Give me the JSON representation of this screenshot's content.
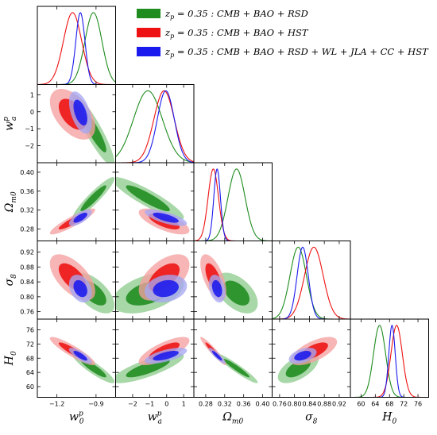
{
  "chart_data": {
    "type": "triangle-corner",
    "parameters": [
      {
        "key": "w0",
        "label": "w",
        "sub": "0",
        "sup": "p",
        "range": [
          -1.35,
          -0.75
        ],
        "ticks": [
          -1.2,
          -0.9
        ],
        "tick_labels": [
          "−1.2",
          "−0.9"
        ]
      },
      {
        "key": "wa",
        "label": "w",
        "sub": "a",
        "sup": "p",
        "range": [
          -3.0,
          1.6
        ],
        "ticks": [
          -2,
          -1,
          0,
          1
        ],
        "tick_labels": [
          "−2",
          "−1",
          "0",
          "1"
        ]
      },
      {
        "key": "om",
        "label": "Ω",
        "sub": "m0",
        "sup": "",
        "range": [
          0.255,
          0.42
        ],
        "ticks": [
          0.28,
          0.32,
          0.36,
          0.4
        ],
        "tick_labels": [
          "0.28",
          "0.32",
          "0.36",
          "0.40"
        ]
      },
      {
        "key": "s8",
        "label": "σ",
        "sub": "8",
        "sup": "",
        "range": [
          0.74,
          0.95
        ],
        "ticks": [
          0.76,
          0.8,
          0.84,
          0.88,
          0.92
        ],
        "tick_labels": [
          "0.76",
          "0.80",
          "0.84",
          "0.88",
          "0.92"
        ]
      },
      {
        "key": "h0",
        "label": "H",
        "sub": "0",
        "sup": "",
        "range": [
          57,
          79
        ],
        "ticks": [
          60,
          64,
          68,
          72,
          76
        ],
        "tick_labels": [
          "60",
          "64",
          "68",
          "72",
          "76"
        ]
      }
    ],
    "legend": {
      "placement": "top-right",
      "entries": [
        {
          "series": "green",
          "prefix": "z",
          "prefix_sub": "p",
          "text": " = 0.35 :  CMB + BAO + RSD"
        },
        {
          "series": "red",
          "prefix": "z",
          "prefix_sub": "p",
          "text": " = 0.35 :  CMB + BAO + HST"
        },
        {
          "series": "blue",
          "prefix": "z",
          "prefix_sub": "p",
          "text": " = 0.35 :  CMB + BAO + RSD + WL + JLA + CC + HST"
        }
      ]
    },
    "series": [
      {
        "id": "green",
        "color": "#1e8c1e",
        "fill_inner": "#1e8c1e",
        "fill_outer": "#8fcc8f",
        "means": [
          -0.92,
          -1.1,
          0.345,
          0.81,
          65.2
        ],
        "sigmas": [
          0.065,
          0.85,
          0.018,
          0.022,
          1.7
        ],
        "corr": [
          [
            1,
            -0.9,
            0.93,
            -0.6,
            -0.9
          ],
          [
            -0.9,
            1,
            -0.9,
            0.45,
            0.8
          ],
          [
            0.93,
            -0.9,
            1,
            -0.5,
            -0.95
          ],
          [
            -0.6,
            0.45,
            -0.5,
            1,
            0.6
          ],
          [
            -0.9,
            0.8,
            -0.95,
            0.6,
            1
          ]
        ]
      },
      {
        "id": "red",
        "color": "#ee1111",
        "fill_inner": "#ee1111",
        "fill_outer": "#f5a0a0",
        "means": [
          -1.08,
          -0.15,
          0.296,
          0.852,
          70.0
        ],
        "sigmas": [
          0.07,
          0.6,
          0.011,
          0.025,
          1.6
        ],
        "corr": [
          [
            1,
            -0.5,
            0.9,
            -0.6,
            -0.9
          ],
          [
            -0.5,
            1,
            -0.7,
            0.55,
            0.75
          ],
          [
            0.9,
            -0.7,
            1,
            -0.6,
            -0.95
          ],
          [
            -0.6,
            0.55,
            -0.6,
            1,
            0.65
          ],
          [
            -0.9,
            0.75,
            -0.95,
            0.65,
            1
          ]
        ]
      },
      {
        "id": "blue",
        "color": "#1a1aee",
        "fill_inner": "#1a1aee",
        "fill_outer": "#a6a6f2",
        "means": [
          -1.02,
          -0.05,
          0.304,
          0.822,
          68.7
        ],
        "sigmas": [
          0.035,
          0.5,
          0.007,
          0.015,
          0.9
        ],
        "corr": [
          [
            1,
            -0.5,
            0.7,
            -0.3,
            -0.8
          ],
          [
            -0.5,
            1,
            -0.7,
            0.2,
            0.65
          ],
          [
            0.7,
            -0.7,
            1,
            -0.3,
            -0.9
          ],
          [
            -0.3,
            0.2,
            -0.3,
            1,
            0.45
          ],
          [
            -0.8,
            0.65,
            -0.9,
            0.45,
            1
          ]
        ]
      }
    ],
    "grid": false
  }
}
